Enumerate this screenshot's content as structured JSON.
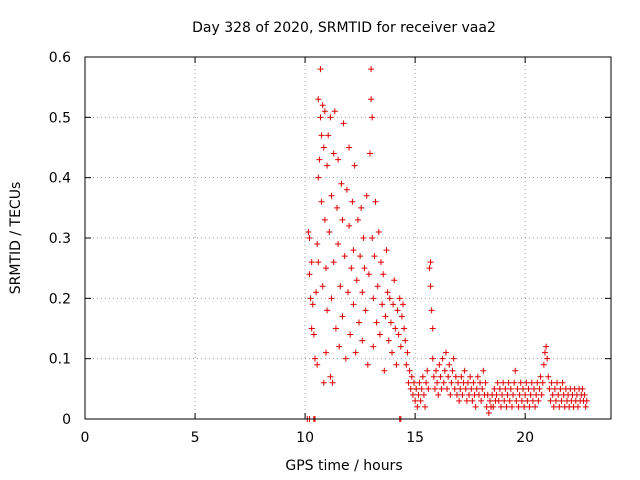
{
  "chart_data": {
    "type": "scatter",
    "title": "Day 328 of 2020, SRMTID for receiver vaa2",
    "xlabel": "GPS time / hours",
    "ylabel": "SRMTID / TECUs",
    "xlim": [
      0,
      23.9
    ],
    "ylim": [
      0,
      0.6
    ],
    "xticks": [
      0,
      5,
      10,
      15,
      20
    ],
    "yticks": [
      0,
      0.1,
      0.2,
      0.3,
      0.4,
      0.5,
      0.6
    ],
    "xtick_labels": [
      "0",
      "5",
      "10",
      "15",
      "20"
    ],
    "ytick_labels": [
      "0",
      "0.1",
      "0.2",
      "0.3",
      "0.4",
      "0.5",
      "0.6"
    ],
    "grid": true,
    "marker": "+",
    "color": "#e00000",
    "series": [
      {
        "name": "SRMTID",
        "points": [
          [
            10.1,
            0.0
          ],
          [
            10.2,
            0.0
          ],
          [
            10.4,
            0.0
          ],
          [
            10.45,
            0.0
          ],
          [
            14.3,
            0.0
          ],
          [
            14.35,
            0.0
          ],
          [
            10.15,
            0.31
          ],
          [
            10.2,
            0.3
          ],
          [
            10.2,
            0.24
          ],
          [
            10.25,
            0.2
          ],
          [
            10.3,
            0.15
          ],
          [
            10.3,
            0.26
          ],
          [
            10.35,
            0.19
          ],
          [
            10.4,
            0.14
          ],
          [
            10.45,
            0.1
          ],
          [
            10.5,
            0.21
          ],
          [
            10.55,
            0.09
          ],
          [
            10.55,
            0.29
          ],
          [
            10.6,
            0.26
          ],
          [
            10.6,
            0.4
          ],
          [
            10.6,
            0.53
          ],
          [
            10.65,
            0.43
          ],
          [
            10.7,
            0.5
          ],
          [
            10.7,
            0.58
          ],
          [
            10.75,
            0.47
          ],
          [
            10.75,
            0.36
          ],
          [
            10.8,
            0.52
          ],
          [
            10.8,
            0.22
          ],
          [
            10.85,
            0.06
          ],
          [
            10.85,
            0.45
          ],
          [
            10.9,
            0.33
          ],
          [
            10.9,
            0.51
          ],
          [
            10.95,
            0.11
          ],
          [
            10.95,
            0.25
          ],
          [
            11.0,
            0.18
          ],
          [
            11.0,
            0.42
          ],
          [
            11.05,
            0.47
          ],
          [
            11.1,
            0.31
          ],
          [
            11.15,
            0.07
          ],
          [
            11.15,
            0.5
          ],
          [
            11.2,
            0.37
          ],
          [
            11.2,
            0.2
          ],
          [
            11.25,
            0.06
          ],
          [
            11.3,
            0.44
          ],
          [
            11.3,
            0.26
          ],
          [
            11.35,
            0.51
          ],
          [
            11.4,
            0.15
          ],
          [
            11.45,
            0.35
          ],
          [
            11.5,
            0.29
          ],
          [
            11.5,
            0.43
          ],
          [
            11.55,
            0.12
          ],
          [
            11.6,
            0.22
          ],
          [
            11.65,
            0.39
          ],
          [
            11.7,
            0.33
          ],
          [
            11.7,
            0.17
          ],
          [
            11.75,
            0.49
          ],
          [
            11.8,
            0.27
          ],
          [
            11.85,
            0.1
          ],
          [
            11.9,
            0.38
          ],
          [
            11.95,
            0.21
          ],
          [
            12.0,
            0.32
          ],
          [
            12.0,
            0.45
          ],
          [
            12.05,
            0.14
          ],
          [
            12.1,
            0.25
          ],
          [
            12.15,
            0.36
          ],
          [
            12.2,
            0.19
          ],
          [
            12.2,
            0.28
          ],
          [
            12.25,
            0.42
          ],
          [
            12.3,
            0.11
          ],
          [
            12.35,
            0.23
          ],
          [
            12.4,
            0.33
          ],
          [
            12.45,
            0.16
          ],
          [
            12.5,
            0.27
          ],
          [
            12.55,
            0.35
          ],
          [
            12.6,
            0.21
          ],
          [
            12.6,
            0.13
          ],
          [
            12.65,
            0.3
          ],
          [
            12.7,
            0.25
          ],
          [
            12.75,
            0.18
          ],
          [
            12.8,
            0.37
          ],
          [
            12.85,
            0.09
          ],
          [
            12.9,
            0.24
          ],
          [
            12.95,
            0.44
          ],
          [
            13.0,
            0.58
          ],
          [
            13.0,
            0.53
          ],
          [
            13.05,
            0.5
          ],
          [
            13.05,
            0.3
          ],
          [
            13.1,
            0.2
          ],
          [
            13.1,
            0.12
          ],
          [
            13.15,
            0.27
          ],
          [
            13.2,
            0.36
          ],
          [
            13.25,
            0.16
          ],
          [
            13.3,
            0.22
          ],
          [
            13.35,
            0.31
          ],
          [
            13.4,
            0.14
          ],
          [
            13.45,
            0.26
          ],
          [
            13.5,
            0.19
          ],
          [
            13.55,
            0.24
          ],
          [
            13.6,
            0.08
          ],
          [
            13.65,
            0.17
          ],
          [
            13.7,
            0.28
          ],
          [
            13.75,
            0.21
          ],
          [
            13.8,
            0.13
          ],
          [
            13.85,
            0.2
          ],
          [
            13.9,
            0.16
          ],
          [
            13.95,
            0.11
          ],
          [
            14.0,
            0.19
          ],
          [
            14.05,
            0.23
          ],
          [
            14.1,
            0.15
          ],
          [
            14.15,
            0.09
          ],
          [
            14.2,
            0.18
          ],
          [
            14.25,
            0.14
          ],
          [
            14.3,
            0.2
          ],
          [
            14.35,
            0.12
          ],
          [
            14.4,
            0.17
          ],
          [
            14.45,
            0.19
          ],
          [
            14.5,
            0.15
          ],
          [
            14.55,
            0.13
          ],
          [
            14.6,
            0.09
          ],
          [
            14.65,
            0.11
          ],
          [
            14.7,
            0.06
          ],
          [
            14.75,
            0.08
          ],
          [
            14.8,
            0.05
          ],
          [
            14.85,
            0.07
          ],
          [
            14.9,
            0.04
          ],
          [
            14.95,
            0.06
          ],
          [
            15.0,
            0.03
          ],
          [
            15.05,
            0.05
          ],
          [
            15.1,
            0.02
          ],
          [
            15.15,
            0.04
          ],
          [
            15.2,
            0.06
          ],
          [
            15.25,
            0.03
          ],
          [
            15.3,
            0.05
          ],
          [
            15.35,
            0.07
          ],
          [
            15.4,
            0.04
          ],
          [
            15.45,
            0.02
          ],
          [
            15.5,
            0.06
          ],
          [
            15.55,
            0.08
          ],
          [
            15.6,
            0.05
          ],
          [
            15.65,
            0.25
          ],
          [
            15.7,
            0.26
          ],
          [
            15.7,
            0.22
          ],
          [
            15.75,
            0.18
          ],
          [
            15.8,
            0.15
          ],
          [
            15.8,
            0.1
          ],
          [
            15.85,
            0.07
          ],
          [
            15.9,
            0.05
          ],
          [
            15.95,
            0.08
          ],
          [
            16.0,
            0.06
          ],
          [
            16.05,
            0.04
          ],
          [
            16.1,
            0.09
          ],
          [
            16.15,
            0.07
          ],
          [
            16.2,
            0.05
          ],
          [
            16.25,
            0.1
          ],
          [
            16.3,
            0.06
          ],
          [
            16.35,
            0.08
          ],
          [
            16.4,
            0.11
          ],
          [
            16.45,
            0.05
          ],
          [
            16.5,
            0.07
          ],
          [
            16.55,
            0.09
          ],
          [
            16.6,
            0.04
          ],
          [
            16.65,
            0.06
          ],
          [
            16.7,
            0.08
          ],
          [
            16.75,
            0.1
          ],
          [
            16.8,
            0.05
          ],
          [
            16.85,
            0.07
          ],
          [
            16.9,
            0.04
          ],
          [
            16.95,
            0.06
          ],
          [
            17.0,
            0.03
          ],
          [
            17.05,
            0.05
          ],
          [
            17.1,
            0.07
          ],
          [
            17.15,
            0.04
          ],
          [
            17.2,
            0.06
          ],
          [
            17.25,
            0.08
          ],
          [
            17.3,
            0.05
          ],
          [
            17.35,
            0.03
          ],
          [
            17.4,
            0.06
          ],
          [
            17.45,
            0.04
          ],
          [
            17.5,
            0.07
          ],
          [
            17.55,
            0.05
          ],
          [
            17.6,
            0.03
          ],
          [
            17.65,
            0.06
          ],
          [
            17.7,
            0.04
          ],
          [
            17.75,
            0.02
          ],
          [
            17.8,
            0.05
          ],
          [
            17.85,
            0.07
          ],
          [
            17.9,
            0.04
          ],
          [
            17.95,
            0.06
          ],
          [
            18.0,
            0.03
          ],
          [
            18.05,
            0.05
          ],
          [
            18.1,
            0.08
          ],
          [
            18.15,
            0.04
          ],
          [
            18.2,
            0.06
          ],
          [
            18.25,
            0.02
          ],
          [
            18.3,
            0.04
          ],
          [
            18.35,
            0.01
          ],
          [
            18.4,
            0.03
          ],
          [
            18.45,
            0.02
          ],
          [
            18.5,
            0.04
          ],
          [
            18.55,
            0.02
          ],
          [
            18.6,
            0.05
          ],
          [
            18.65,
            0.03
          ],
          [
            18.7,
            0.04
          ],
          [
            18.75,
            0.06
          ],
          [
            18.8,
            0.03
          ],
          [
            18.85,
            0.05
          ],
          [
            18.9,
            0.02
          ],
          [
            18.95,
            0.04
          ],
          [
            19.0,
            0.06
          ],
          [
            19.05,
            0.03
          ],
          [
            19.1,
            0.05
          ],
          [
            19.15,
            0.02
          ],
          [
            19.2,
            0.04
          ],
          [
            19.25,
            0.06
          ],
          [
            19.3,
            0.03
          ],
          [
            19.35,
            0.05
          ],
          [
            19.4,
            0.02
          ],
          [
            19.45,
            0.04
          ],
          [
            19.5,
            0.06
          ],
          [
            19.55,
            0.08
          ],
          [
            19.6,
            0.03
          ],
          [
            19.65,
            0.05
          ],
          [
            19.7,
            0.02
          ],
          [
            19.75,
            0.04
          ],
          [
            19.8,
            0.06
          ],
          [
            19.85,
            0.03
          ],
          [
            19.9,
            0.05
          ],
          [
            19.95,
            0.02
          ],
          [
            20.0,
            0.04
          ],
          [
            20.05,
            0.06
          ],
          [
            20.1,
            0.03
          ],
          [
            20.15,
            0.05
          ],
          [
            20.2,
            0.02
          ],
          [
            20.25,
            0.04
          ],
          [
            20.3,
            0.06
          ],
          [
            20.35,
            0.03
          ],
          [
            20.4,
            0.05
          ],
          [
            20.45,
            0.02
          ],
          [
            20.5,
            0.04
          ],
          [
            20.55,
            0.06
          ],
          [
            20.6,
            0.03
          ],
          [
            20.65,
            0.05
          ],
          [
            20.7,
            0.07
          ],
          [
            20.75,
            0.04
          ],
          [
            20.8,
            0.06
          ],
          [
            20.85,
            0.09
          ],
          [
            20.9,
            0.11
          ],
          [
            20.95,
            0.12
          ],
          [
            21.0,
            0.1
          ],
          [
            21.05,
            0.07
          ],
          [
            21.1,
            0.05
          ],
          [
            21.15,
            0.03
          ],
          [
            21.2,
            0.06
          ],
          [
            21.25,
            0.04
          ],
          [
            21.3,
            0.02
          ],
          [
            21.35,
            0.05
          ],
          [
            21.4,
            0.03
          ],
          [
            21.45,
            0.06
          ],
          [
            21.5,
            0.04
          ],
          [
            21.55,
            0.02
          ],
          [
            21.6,
            0.05
          ],
          [
            21.65,
            0.03
          ],
          [
            21.7,
            0.06
          ],
          [
            21.75,
            0.04
          ],
          [
            21.8,
            0.02
          ],
          [
            21.85,
            0.05
          ],
          [
            21.9,
            0.03
          ],
          [
            21.95,
            0.04
          ],
          [
            22.0,
            0.02
          ],
          [
            22.05,
            0.05
          ],
          [
            22.1,
            0.03
          ],
          [
            22.15,
            0.04
          ],
          [
            22.2,
            0.02
          ],
          [
            22.25,
            0.05
          ],
          [
            22.3,
            0.03
          ],
          [
            22.35,
            0.04
          ],
          [
            22.4,
            0.02
          ],
          [
            22.45,
            0.05
          ],
          [
            22.5,
            0.03
          ],
          [
            22.55,
            0.04
          ],
          [
            22.6,
            0.05
          ],
          [
            22.65,
            0.03
          ],
          [
            22.7,
            0.04
          ],
          [
            22.75,
            0.02
          ],
          [
            22.8,
            0.03
          ]
        ]
      }
    ]
  }
}
